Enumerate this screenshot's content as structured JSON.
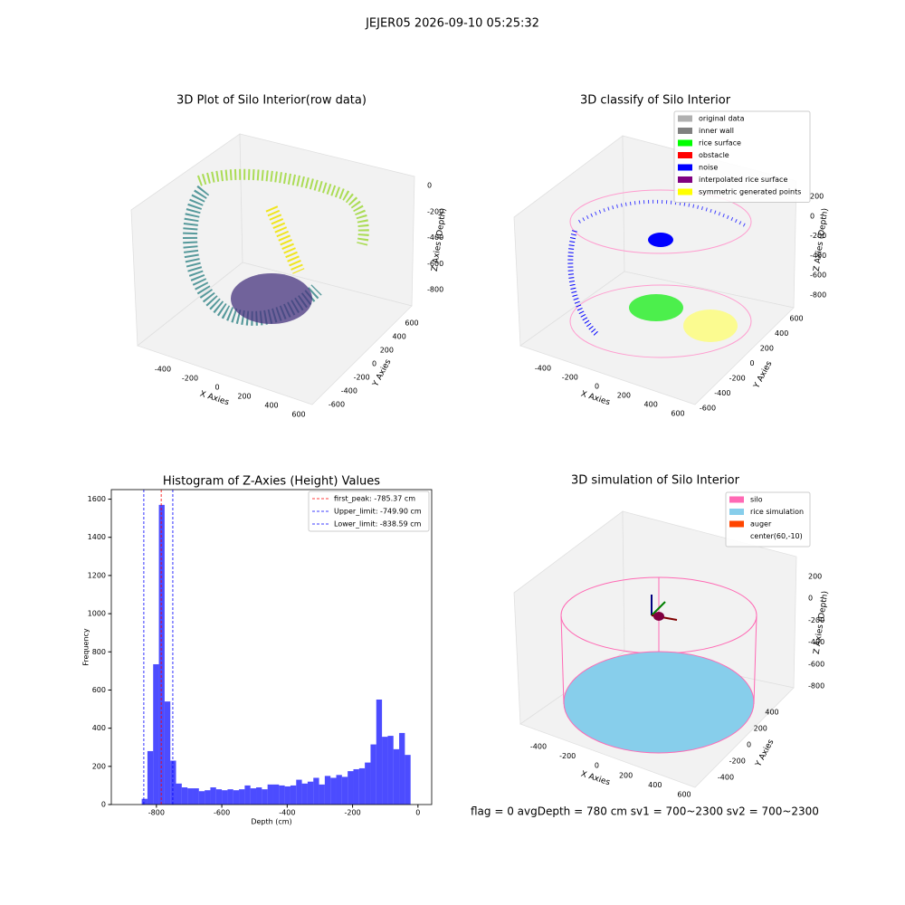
{
  "suptitle": "JEJER05 2026-09-10 05:25:32",
  "status": "flag = 0     avgDepth = 780 cm  sv1 = 700~2300  sv2 = 700~2300",
  "chart_data": [
    {
      "type": "scatter3d",
      "title": "3D Plot of Silo Interior(row data)",
      "xlabel": "X Axies",
      "ylabel": "Y Axies",
      "zlabel": "Z Axies (Depth)",
      "xticks": [
        -400,
        -200,
        0,
        200,
        400,
        600
      ],
      "yticks": [
        -600,
        -400,
        -200,
        0,
        200,
        400,
        600
      ],
      "zticks": [
        -800,
        -600,
        -400,
        -200,
        0
      ]
    },
    {
      "type": "scatter3d",
      "title": "3D classify of Silo Interior",
      "xlabel": "X Axies",
      "ylabel": "Y Axies",
      "zlabel": "Z Axies (Depth)",
      "xticks": [
        -400,
        -200,
        0,
        200,
        400,
        600
      ],
      "yticks": [
        -600,
        -400,
        -200,
        0,
        200,
        400,
        600
      ],
      "zticks": [
        -800,
        -600,
        -400,
        -200,
        0,
        200
      ],
      "legend": [
        {
          "name": "original data",
          "color": "#b0b0b0"
        },
        {
          "name": "inner wall",
          "color": "#808080"
        },
        {
          "name": "rice surface",
          "color": "#00ff00"
        },
        {
          "name": "obstacle",
          "color": "#ff0000"
        },
        {
          "name": "noise",
          "color": "#0000ff"
        },
        {
          "name": "interpolated rice surface",
          "color": "#800080"
        },
        {
          "name": "symmetric generated points",
          "color": "#ffff00"
        }
      ]
    },
    {
      "type": "histogram",
      "title": "Histogram of Z-Axies (Height) Values",
      "xlabel": "Depth (cm)",
      "ylabel": "Frequency",
      "color": "#0000ff",
      "bins": [
        -845,
        -827.5,
        -810,
        -792.5,
        -775,
        -757.5,
        -740,
        -722.5,
        -705,
        -687.5,
        -670,
        -652.5,
        -635,
        -617.5,
        -600,
        -582.5,
        -565,
        -547.5,
        -530,
        -512.5,
        -495,
        -477.5,
        -460,
        -442.5,
        -425,
        -407.5,
        -390,
        -372.5,
        -355,
        -337.5,
        -320,
        -302.5,
        -285,
        -267.5,
        -250,
        -232.5,
        -215,
        -197.5,
        -180,
        -162.5,
        -145,
        -127.5,
        -110,
        -92.5,
        -75,
        -57.5,
        -40,
        -22.5,
        -5
      ],
      "counts": [
        30,
        280,
        735,
        1570,
        540,
        230,
        110,
        90,
        85,
        85,
        70,
        75,
        90,
        80,
        75,
        80,
        75,
        80,
        100,
        85,
        90,
        80,
        105,
        105,
        100,
        95,
        100,
        130,
        110,
        120,
        140,
        105,
        150,
        140,
        155,
        145,
        175,
        185,
        190,
        220,
        315,
        550,
        355,
        360,
        290,
        375,
        260,
        0
      ],
      "xlim": [
        -938,
        42
      ],
      "ylim": [
        0,
        1650
      ],
      "xticks": [
        -800,
        -600,
        -400,
        -200,
        0
      ],
      "yticks": [
        0,
        200,
        400,
        600,
        800,
        1000,
        1200,
        1400,
        1600
      ],
      "vlines": [
        {
          "name": "first_peak: -785.37 cm",
          "value": -785.37,
          "color": "#ff0000"
        },
        {
          "name": "Upper_limit: -749.90 cm",
          "value": -749.9,
          "color": "#0000ff"
        },
        {
          "name": "Lower_limit: -838.59 cm",
          "value": -838.59,
          "color": "#0000ff"
        }
      ]
    },
    {
      "type": "surface3d",
      "title": "3D simulation of Silo Interior",
      "xlabel": "X Axies",
      "ylabel": "Y Axies",
      "zlabel": "Z Axies (Depth)",
      "xticks": [
        -400,
        -200,
        0,
        200,
        400,
        600
      ],
      "yticks": [
        -400,
        -200,
        0,
        200,
        400
      ],
      "zticks": [
        -800,
        -600,
        -400,
        -200,
        0,
        200
      ],
      "legend": [
        {
          "name": "silo",
          "color": "#ff69b4"
        },
        {
          "name": "rice simulation",
          "color": "#87ceeb"
        },
        {
          "name": "auger",
          "color": "#ff4500"
        },
        {
          "name": "center(60,-10)",
          "color": "#ffffff"
        }
      ]
    }
  ]
}
